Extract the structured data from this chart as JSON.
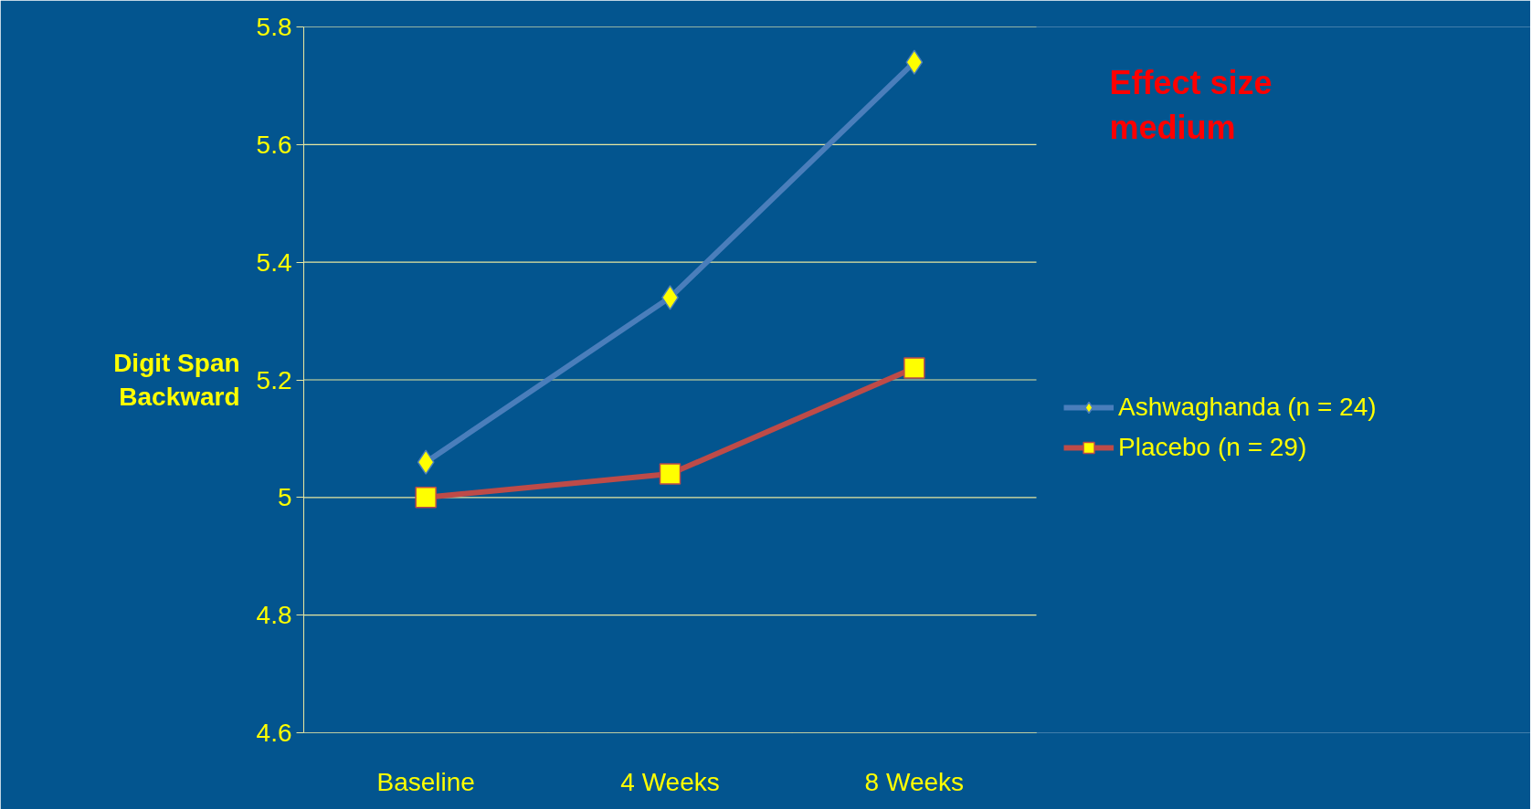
{
  "chart_data": {
    "type": "line",
    "ylabel": "Digit Span\nBackward",
    "categories": [
      "Baseline",
      "4 Weeks",
      "8 Weeks"
    ],
    "series": [
      {
        "name": "Ashwaghanda (n = 24)",
        "color": "#4a7ebb",
        "marker": "diamond",
        "values": [
          5.06,
          5.34,
          5.74
        ]
      },
      {
        "name": "Placebo (n = 29)",
        "color": "#be4b48",
        "marker": "square",
        "values": [
          5.0,
          5.04,
          5.22
        ]
      }
    ],
    "ylim": [
      4.6,
      5.8
    ],
    "yticks": [
      4.6,
      4.8,
      {
        "value": 5.0,
        "label": "5"
      },
      5.2,
      5.4,
      5.6,
      5.8
    ],
    "grid": "y",
    "legend": "right",
    "annotations": [
      "Effect size\nmedium"
    ]
  }
}
